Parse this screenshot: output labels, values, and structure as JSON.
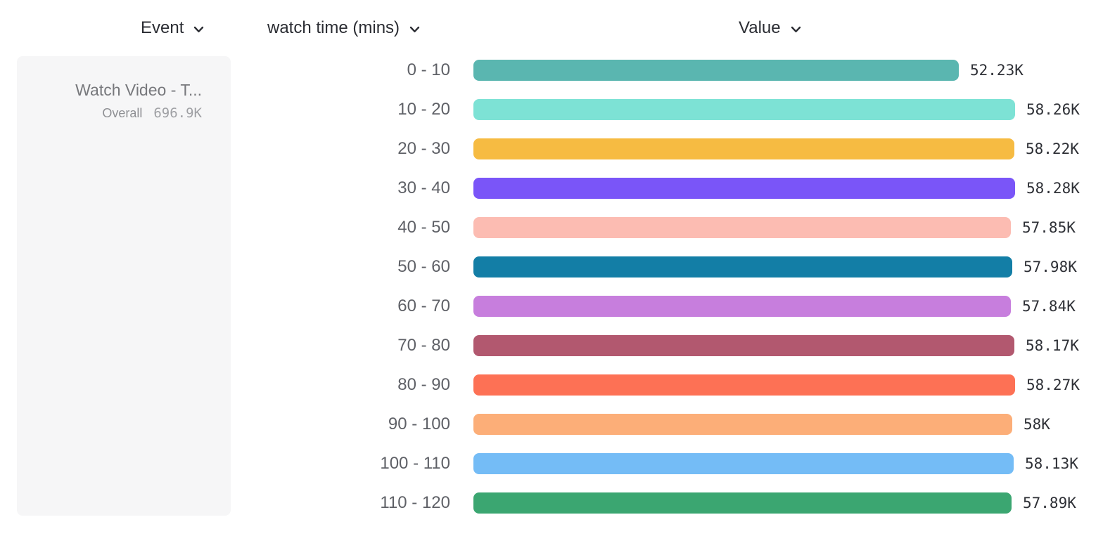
{
  "header": {
    "event_label": "Event",
    "breakdown_label": "watch time (mins)",
    "value_label": "Value"
  },
  "event_card": {
    "name": "Watch Video - T...",
    "overall_label": "Overall",
    "overall_value": "696.9K"
  },
  "chart_data": {
    "type": "bar",
    "orientation": "horizontal",
    "title": "",
    "xlabel": "Value",
    "ylabel": "watch time (mins)",
    "xlim": [
      0,
      58280
    ],
    "grid": false,
    "categories": [
      "0 - 10",
      "10 - 20",
      "20 - 30",
      "30 - 40",
      "40 - 50",
      "50 - 60",
      "60 - 70",
      "70 - 80",
      "80 - 90",
      "90 - 100",
      "100 - 110",
      "110 - 120"
    ],
    "values": [
      52230,
      58260,
      58220,
      58280,
      57850,
      57980,
      57840,
      58170,
      58270,
      58000,
      58130,
      57890
    ],
    "value_labels": [
      "52.23K",
      "58.26K",
      "58.22K",
      "58.28K",
      "57.85K",
      "57.98K",
      "57.84K",
      "58.17K",
      "58.27K",
      "58K",
      "58.13K",
      "57.89K"
    ],
    "bar_colors": [
      "#5ab6b0",
      "#7de2d5",
      "#f6bb42",
      "#7a55f8",
      "#fcbcb2",
      "#137ea6",
      "#c77edd",
      "#b2586f",
      "#fd7155",
      "#fcae78",
      "#74bcf6",
      "#3ba671"
    ]
  },
  "icons": {
    "chevron_down": "chevron-down-icon"
  }
}
